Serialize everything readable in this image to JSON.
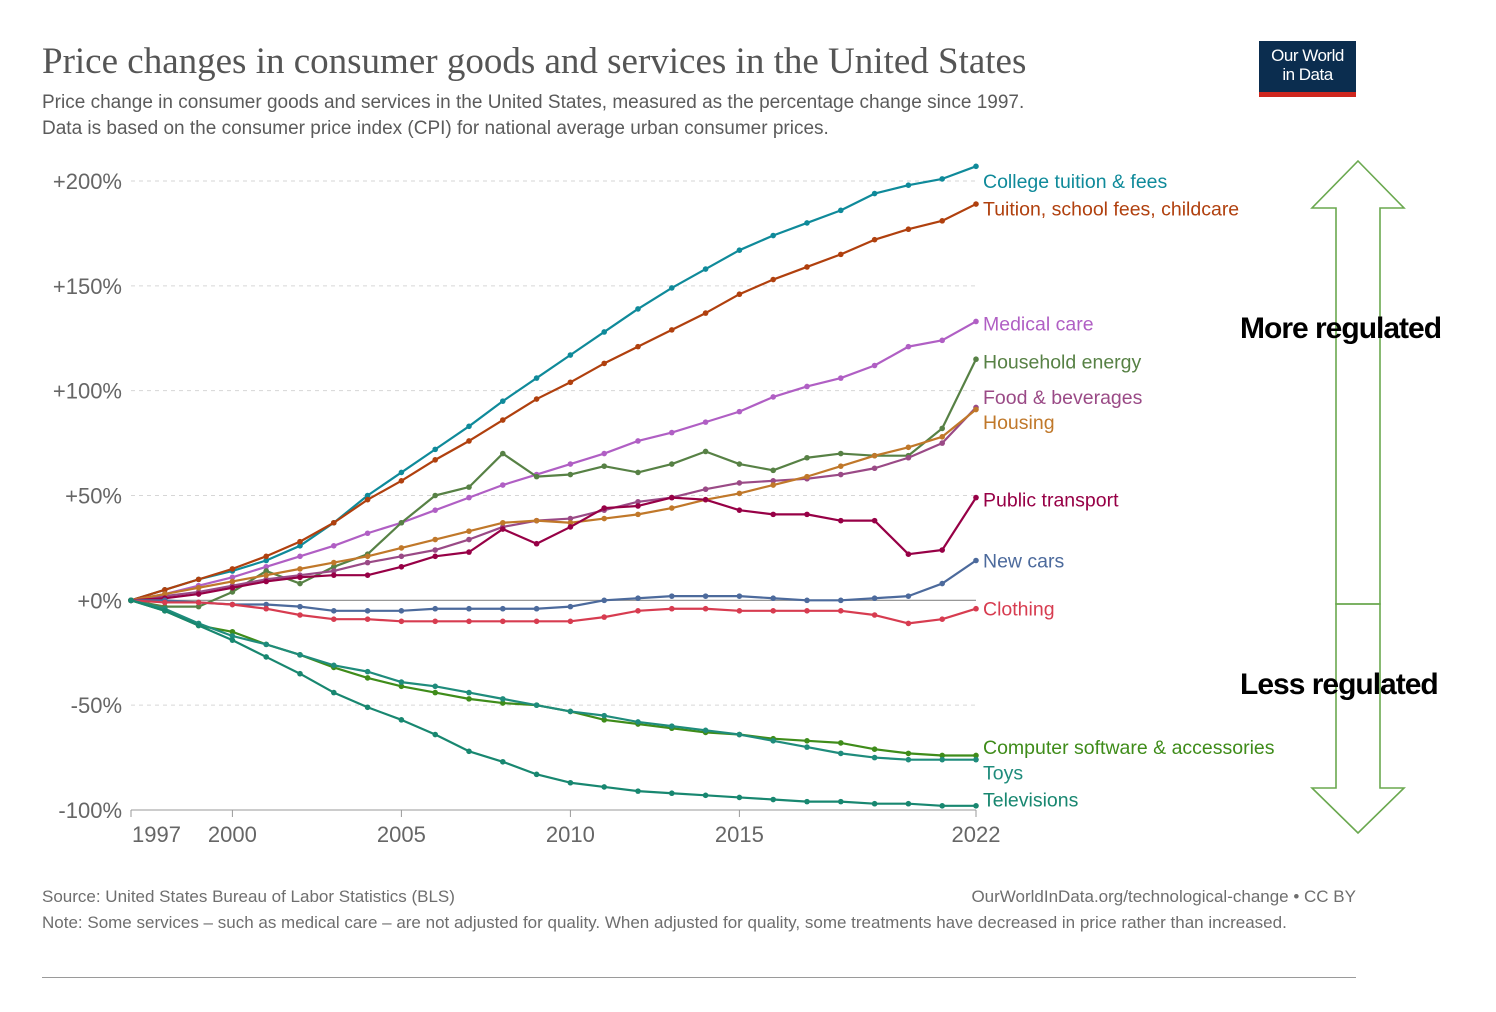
{
  "header": {
    "title": "Price changes in consumer goods and services in the United States",
    "subtitle_line1": "Price change in consumer goods and services in the United States, measured as the percentage change since 1997.",
    "subtitle_line2": "Data is based on the consumer price index (CPI) for national average urban consumer prices.",
    "logo_line1": "Our World",
    "logo_line2": "in Data"
  },
  "footer": {
    "source": "Source: United States Bureau of Labor Statistics (BLS)",
    "url": "OurWorldInData.org/technological-change • CC BY",
    "note": "Note: Some services – such as medical care – are not adjusted for quality. When adjusted for quality, some treatments have decreased in price rather than increased."
  },
  "annotations": {
    "more_regulated": "More regulated",
    "less_regulated": "Less regulated",
    "arrow_color": "#6aa84f"
  },
  "chart_data": {
    "type": "line",
    "title": "Price changes in consumer goods and services in the United States",
    "xlabel": "",
    "ylabel": "",
    "x": [
      1997,
      1998,
      1999,
      2000,
      2001,
      2002,
      2003,
      2004,
      2005,
      2006,
      2007,
      2008,
      2009,
      2010,
      2011,
      2012,
      2013,
      2014,
      2015,
      2016,
      2017,
      2018,
      2019,
      2020,
      2021,
      2022
    ],
    "xticks": [
      "1997",
      "2000",
      "2005",
      "2010",
      "2015",
      "2022"
    ],
    "xlim": [
      1997,
      2022
    ],
    "ylim": [
      -100,
      200
    ],
    "yticks": [
      {
        "value": 200,
        "label": "+200%"
      },
      {
        "value": 150,
        "label": "+150%"
      },
      {
        "value": 100,
        "label": "+100%"
      },
      {
        "value": 50,
        "label": "+50%"
      },
      {
        "value": 0,
        "label": "+0%"
      },
      {
        "value": -50,
        "label": "-50%"
      },
      {
        "value": -100,
        "label": "-100%"
      }
    ],
    "grid": "horizontal dashed",
    "legend": "labels at line ends",
    "series": [
      {
        "name": "College tuition & fees",
        "color": "#0f8a9a",
        "label_y": 200,
        "values": [
          0,
          5,
          10,
          14,
          19,
          26,
          37,
          50,
          61,
          72,
          83,
          95,
          106,
          117,
          128,
          139,
          149,
          158,
          167,
          174,
          180,
          186,
          194,
          198,
          201,
          207
        ]
      },
      {
        "name": "Tuition, school fees, childcare",
        "color": "#b0400e",
        "label_y": 187,
        "values": [
          0,
          5,
          10,
          15,
          21,
          28,
          37,
          48,
          57,
          67,
          76,
          86,
          96,
          104,
          113,
          121,
          129,
          137,
          146,
          153,
          159,
          165,
          172,
          177,
          181,
          189
        ]
      },
      {
        "name": "Medical care",
        "color": "#b05fc4",
        "label_y": 132,
        "values": [
          0,
          3,
          7,
          11,
          16,
          21,
          26,
          32,
          37,
          43,
          49,
          55,
          60,
          65,
          70,
          76,
          80,
          85,
          90,
          97,
          102,
          106,
          112,
          121,
          124,
          133
        ]
      },
      {
        "name": "Household energy",
        "color": "#578145",
        "label_y": 114,
        "values": [
          0,
          -3,
          -3,
          4,
          14,
          8,
          16,
          22,
          37,
          50,
          54,
          70,
          59,
          60,
          64,
          61,
          65,
          71,
          65,
          62,
          68,
          70,
          69,
          69,
          82,
          115
        ]
      },
      {
        "name": "Food & beverages",
        "color": "#9a4a86",
        "label_y": 97,
        "values": [
          0,
          2,
          4,
          7,
          10,
          12,
          14,
          18,
          21,
          24,
          29,
          35,
          38,
          39,
          43,
          47,
          49,
          53,
          56,
          57,
          58,
          60,
          63,
          68,
          75,
          92
        ]
      },
      {
        "name": "Housing",
        "color": "#c0782a",
        "label_y": 85,
        "values": [
          0,
          3,
          6,
          9,
          12,
          15,
          18,
          21,
          25,
          29,
          33,
          37,
          38,
          37,
          39,
          41,
          44,
          48,
          51,
          55,
          59,
          64,
          69,
          73,
          78,
          91
        ]
      },
      {
        "name": "Public transport",
        "color": "#970046",
        "label_y": 48,
        "values": [
          0,
          1,
          3,
          6,
          9,
          11,
          12,
          12,
          16,
          21,
          23,
          34,
          27,
          35,
          44,
          45,
          49,
          48,
          43,
          41,
          41,
          38,
          38,
          22,
          24,
          49
        ]
      },
      {
        "name": "New cars",
        "color": "#4c6a9c",
        "label_y": 19,
        "values": [
          0,
          0,
          -1,
          -2,
          -2,
          -3,
          -5,
          -5,
          -5,
          -4,
          -4,
          -4,
          -4,
          -3,
          0,
          1,
          2,
          2,
          2,
          1,
          0,
          0,
          1,
          2,
          8,
          19
        ]
      },
      {
        "name": "Clothing",
        "color": "#d73c50",
        "label_y": -4,
        "values": [
          0,
          -1,
          -1,
          -2,
          -4,
          -7,
          -9,
          -9,
          -10,
          -10,
          -10,
          -10,
          -10,
          -10,
          -8,
          -5,
          -4,
          -4,
          -5,
          -5,
          -5,
          -5,
          -7,
          -11,
          -9,
          -4
        ]
      },
      {
        "name": "Computer software & accessories",
        "color": "#3f8c1a",
        "label_y": -70,
        "values": [
          0,
          -5,
          -12,
          -15,
          -21,
          -26,
          -32,
          -37,
          -41,
          -44,
          -47,
          -49,
          -50,
          -53,
          -57,
          -59,
          -61,
          -63,
          -64,
          -66,
          -67,
          -68,
          -71,
          -73,
          -74,
          -74
        ]
      },
      {
        "name": "Toys",
        "color": "#1f8c7c",
        "label_y": -82,
        "values": [
          0,
          -4,
          -11,
          -17,
          -21,
          -26,
          -31,
          -34,
          -39,
          -41,
          -44,
          -47,
          -50,
          -53,
          -55,
          -58,
          -60,
          -62,
          -64,
          -67,
          -70,
          -73,
          -75,
          -76,
          -76,
          -76
        ]
      },
      {
        "name": "Televisions",
        "color": "#188770",
        "label_y": -95,
        "values": [
          0,
          -5,
          -12,
          -19,
          -27,
          -35,
          -44,
          -51,
          -57,
          -64,
          -72,
          -77,
          -83,
          -87,
          -89,
          -91,
          -92,
          -93,
          -94,
          -95,
          -96,
          -96,
          -97,
          -97,
          -98,
          -98
        ]
      }
    ]
  }
}
